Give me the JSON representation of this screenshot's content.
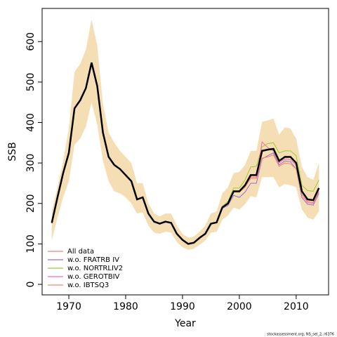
{
  "chart_data": {
    "type": "line",
    "xlabel": "Year",
    "ylabel": "SSB",
    "caption": "stockassessment.org, NS_sel_2, r6376",
    "x": [
      1967,
      1968,
      1969,
      1970,
      1971,
      1972,
      1973,
      1974,
      1975,
      1976,
      1977,
      1978,
      1979,
      1980,
      1981,
      1982,
      1983,
      1984,
      1985,
      1986,
      1987,
      1988,
      1989,
      1990,
      1991,
      1992,
      1993,
      1994,
      1995,
      1996,
      1997,
      1998,
      1999,
      2000,
      2001,
      2002,
      2003,
      2004,
      2005,
      2006,
      2007,
      2008,
      2009,
      2010,
      2011,
      2012,
      2013,
      2014
    ],
    "estimate": {
      "color": "#000000",
      "values": [
        152,
        215,
        275,
        325,
        435,
        455,
        485,
        548,
        490,
        375,
        315,
        295,
        285,
        270,
        255,
        210,
        215,
        175,
        155,
        150,
        155,
        152,
        125,
        110,
        100,
        103,
        115,
        125,
        150,
        153,
        190,
        200,
        230,
        230,
        245,
        270,
        270,
        330,
        333,
        335,
        305,
        315,
        315,
        300,
        230,
        210,
        208,
        238
      ]
    },
    "band": {
      "color": "#f5deb3",
      "upper": [
        180,
        240,
        305,
        385,
        525,
        545,
        580,
        655,
        590,
        445,
        375,
        350,
        330,
        315,
        300,
        250,
        250,
        200,
        175,
        168,
        175,
        175,
        145,
        125,
        115,
        118,
        130,
        145,
        175,
        180,
        225,
        240,
        275,
        278,
        295,
        330,
        330,
        402,
        405,
        410,
        370,
        388,
        385,
        360,
        290,
        265,
        258,
        300
      ],
      "lower": [
        108,
        165,
        215,
        255,
        345,
        360,
        390,
        450,
        395,
        305,
        255,
        230,
        225,
        215,
        200,
        175,
        178,
        145,
        128,
        125,
        130,
        128,
        105,
        92,
        85,
        88,
        98,
        108,
        128,
        130,
        160,
        170,
        190,
        185,
        198,
        218,
        215,
        265,
        265,
        265,
        240,
        248,
        245,
        240,
        185,
        165,
        160,
        180
      ]
    },
    "series": [
      {
        "name": "All data",
        "color": "#f08080",
        "values": [
          152,
          215,
          275,
          325,
          435,
          455,
          485,
          548,
          490,
          375,
          315,
          295,
          285,
          270,
          255,
          210,
          215,
          175,
          155,
          150,
          155,
          152,
          125,
          110,
          100,
          103,
          115,
          125,
          150,
          153,
          190,
          200,
          230,
          230,
          245,
          270,
          270,
          330,
          333,
          335,
          305,
          315,
          315,
          300,
          230,
          210,
          208,
          238
        ]
      },
      {
        "name": "w.o. FRATRB IV",
        "color": "#9370db",
        "values": [
          152,
          215,
          275,
          325,
          435,
          455,
          485,
          548,
          490,
          375,
          315,
          295,
          285,
          270,
          255,
          210,
          215,
          175,
          155,
          150,
          155,
          152,
          125,
          110,
          100,
          103,
          115,
          125,
          150,
          153,
          188,
          195,
          220,
          215,
          228,
          250,
          250,
          310,
          318,
          325,
          295,
          305,
          303,
          285,
          215,
          198,
          196,
          225
        ]
      },
      {
        "name": "w.o. NORTRLIV2",
        "color": "#9acd32",
        "values": [
          152,
          215,
          275,
          325,
          435,
          455,
          485,
          548,
          490,
          375,
          315,
          295,
          285,
          270,
          255,
          210,
          215,
          175,
          155,
          150,
          155,
          152,
          125,
          110,
          100,
          103,
          115,
          125,
          150,
          153,
          193,
          205,
          238,
          238,
          258,
          290,
          292,
          340,
          348,
          350,
          325,
          330,
          330,
          318,
          245,
          232,
          230,
          258
        ]
      },
      {
        "name": "w.o. GEROTBIV",
        "color": "#ff69b4",
        "values": [
          152,
          215,
          275,
          325,
          435,
          455,
          485,
          548,
          490,
          375,
          315,
          295,
          285,
          270,
          255,
          210,
          215,
          175,
          155,
          150,
          155,
          152,
          125,
          110,
          100,
          103,
          115,
          125,
          150,
          153,
          190,
          198,
          232,
          228,
          240,
          265,
          265,
          352,
          338,
          330,
          300,
          310,
          308,
          295,
          222,
          202,
          200,
          230
        ]
      },
      {
        "name": "w.o. IBTSQ3",
        "color": "#fa8072",
        "values": [
          152,
          215,
          275,
          325,
          435,
          455,
          485,
          548,
          490,
          375,
          315,
          295,
          285,
          270,
          255,
          210,
          215,
          175,
          155,
          150,
          155,
          152,
          125,
          110,
          100,
          103,
          115,
          125,
          150,
          153,
          192,
          200,
          228,
          228,
          240,
          262,
          262,
          312,
          315,
          320,
          292,
          300,
          298,
          285,
          222,
          205,
          202,
          228
        ]
      }
    ],
    "xlim": [
      1965.3,
      2015.7
    ],
    "ylim": [
      -26,
      682
    ],
    "xticks": [
      1970,
      1980,
      1990,
      2000,
      2010
    ],
    "yticks": [
      0,
      100,
      200,
      300,
      400,
      500,
      600
    ],
    "legend": "bottom-left"
  }
}
